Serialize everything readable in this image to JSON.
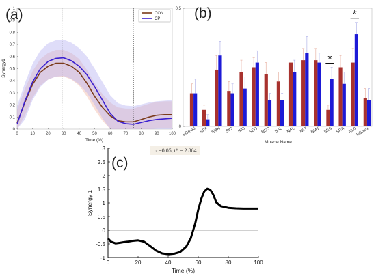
{
  "chart_data": [
    {
      "type": "line",
      "panel": "(a)",
      "xlabel": "Time (%)",
      "ylabel": "Synergy1",
      "xlim": [
        0,
        100
      ],
      "ylim": [
        0,
        1
      ],
      "xticks": [
        "0",
        "10",
        "20",
        "30",
        "40",
        "50",
        "60",
        "70",
        "80",
        "90",
        "100"
      ],
      "yticks": [
        "0",
        "0.1",
        "0.2",
        "0.3",
        "0.4",
        "0.5",
        "0.6",
        "0.7",
        "0.8",
        "0.9",
        "1"
      ],
      "vlines": [
        29,
        75
      ],
      "legend": "top-right",
      "colors": {
        "CON": "#7a3a1a",
        "CP": "#3a1fd0"
      },
      "x": [
        0,
        5,
        10,
        15,
        20,
        25,
        30,
        35,
        40,
        45,
        50,
        55,
        60,
        65,
        70,
        75,
        80,
        85,
        90,
        95,
        100
      ],
      "series": [
        {
          "name": "CON",
          "values": [
            0.05,
            0.22,
            0.37,
            0.47,
            0.52,
            0.545,
            0.545,
            0.52,
            0.47,
            0.38,
            0.27,
            0.18,
            0.11,
            0.07,
            0.06,
            0.06,
            0.08,
            0.1,
            0.115,
            0.12,
            0.12
          ],
          "band": 0.11
        },
        {
          "name": "CP",
          "values": [
            0.04,
            0.23,
            0.39,
            0.5,
            0.56,
            0.585,
            0.59,
            0.565,
            0.52,
            0.45,
            0.35,
            0.24,
            0.13,
            0.065,
            0.045,
            0.04,
            0.055,
            0.07,
            0.08,
            0.085,
            0.09
          ],
          "band": 0.15
        }
      ]
    },
    {
      "type": "bar",
      "panel": "(b)",
      "xlabel": "Muscle Name",
      "ylim": [
        0,
        0.5
      ],
      "yticks": [
        "0",
        "0.5"
      ],
      "categories": [
        "SGmed",
        "SRF",
        "SMH",
        "SIO",
        "NIO",
        "SEO",
        "NEO",
        "SAL",
        "NAL",
        "NLT",
        "NMT",
        "SES",
        "SRA",
        "NLD",
        "SGmax"
      ],
      "series": [
        {
          "name": "CON",
          "color": "#a8322e",
          "values": [
            0.14,
            0.07,
            0.24,
            0.15,
            0.23,
            0.25,
            0.22,
            0.19,
            0.27,
            0.28,
            0.28,
            0.07,
            0.25,
            0.27,
            0.12
          ],
          "errors": [
            0.04,
            0.02,
            0.06,
            0.04,
            0.05,
            0.04,
            0.05,
            0.04,
            0.07,
            0.05,
            0.05,
            0.02,
            0.05,
            0.06,
            0.04
          ]
        },
        {
          "name": "CP",
          "color": "#1d1ad6",
          "values": [
            0.14,
            0.03,
            0.3,
            0.14,
            0.16,
            0.27,
            0.11,
            0.11,
            0.23,
            0.31,
            0.27,
            0.2,
            0.18,
            0.39,
            0.11
          ],
          "errors": [
            0.06,
            0.02,
            0.06,
            0.04,
            0.05,
            0.05,
            0.03,
            0.03,
            0.05,
            0.07,
            0.04,
            0.05,
            0.05,
            0.05,
            0.05
          ]
        }
      ],
      "significance": [
        {
          "category": "SES",
          "label": "*"
        },
        {
          "category": "NLD",
          "label": "*"
        }
      ]
    },
    {
      "type": "line",
      "panel": "(c)",
      "xlabel": "Time (%)",
      "ylabel": "Synergy 1",
      "xlim": [
        0,
        100
      ],
      "ylim": [
        -1,
        3
      ],
      "xticks": [
        "0",
        "20",
        "40",
        "60",
        "80",
        "100"
      ],
      "yticks": [
        "-1",
        "-0.5",
        "0",
        "0.5",
        "1",
        "1.5",
        "2",
        "2.5",
        "3"
      ],
      "threshold": 2.864,
      "annotation": "α  =0.05,    t* = 2.864",
      "x": [
        0,
        2,
        5,
        8,
        10,
        13,
        16,
        20,
        24,
        28,
        32,
        36,
        40,
        44,
        48,
        52,
        55,
        58,
        60,
        62,
        64,
        66,
        68,
        70,
        72,
        75,
        80,
        85,
        90,
        95,
        100
      ],
      "series": [
        {
          "name": "",
          "values": [
            -0.3,
            -0.42,
            -0.48,
            -0.46,
            -0.44,
            -0.42,
            -0.39,
            -0.37,
            -0.42,
            -0.58,
            -0.75,
            -0.85,
            -0.88,
            -0.86,
            -0.8,
            -0.6,
            -0.3,
            0.25,
            0.75,
            1.15,
            1.42,
            1.52,
            1.48,
            1.3,
            1.02,
            0.88,
            0.82,
            0.8,
            0.79,
            0.79,
            0.79
          ]
        }
      ]
    }
  ]
}
